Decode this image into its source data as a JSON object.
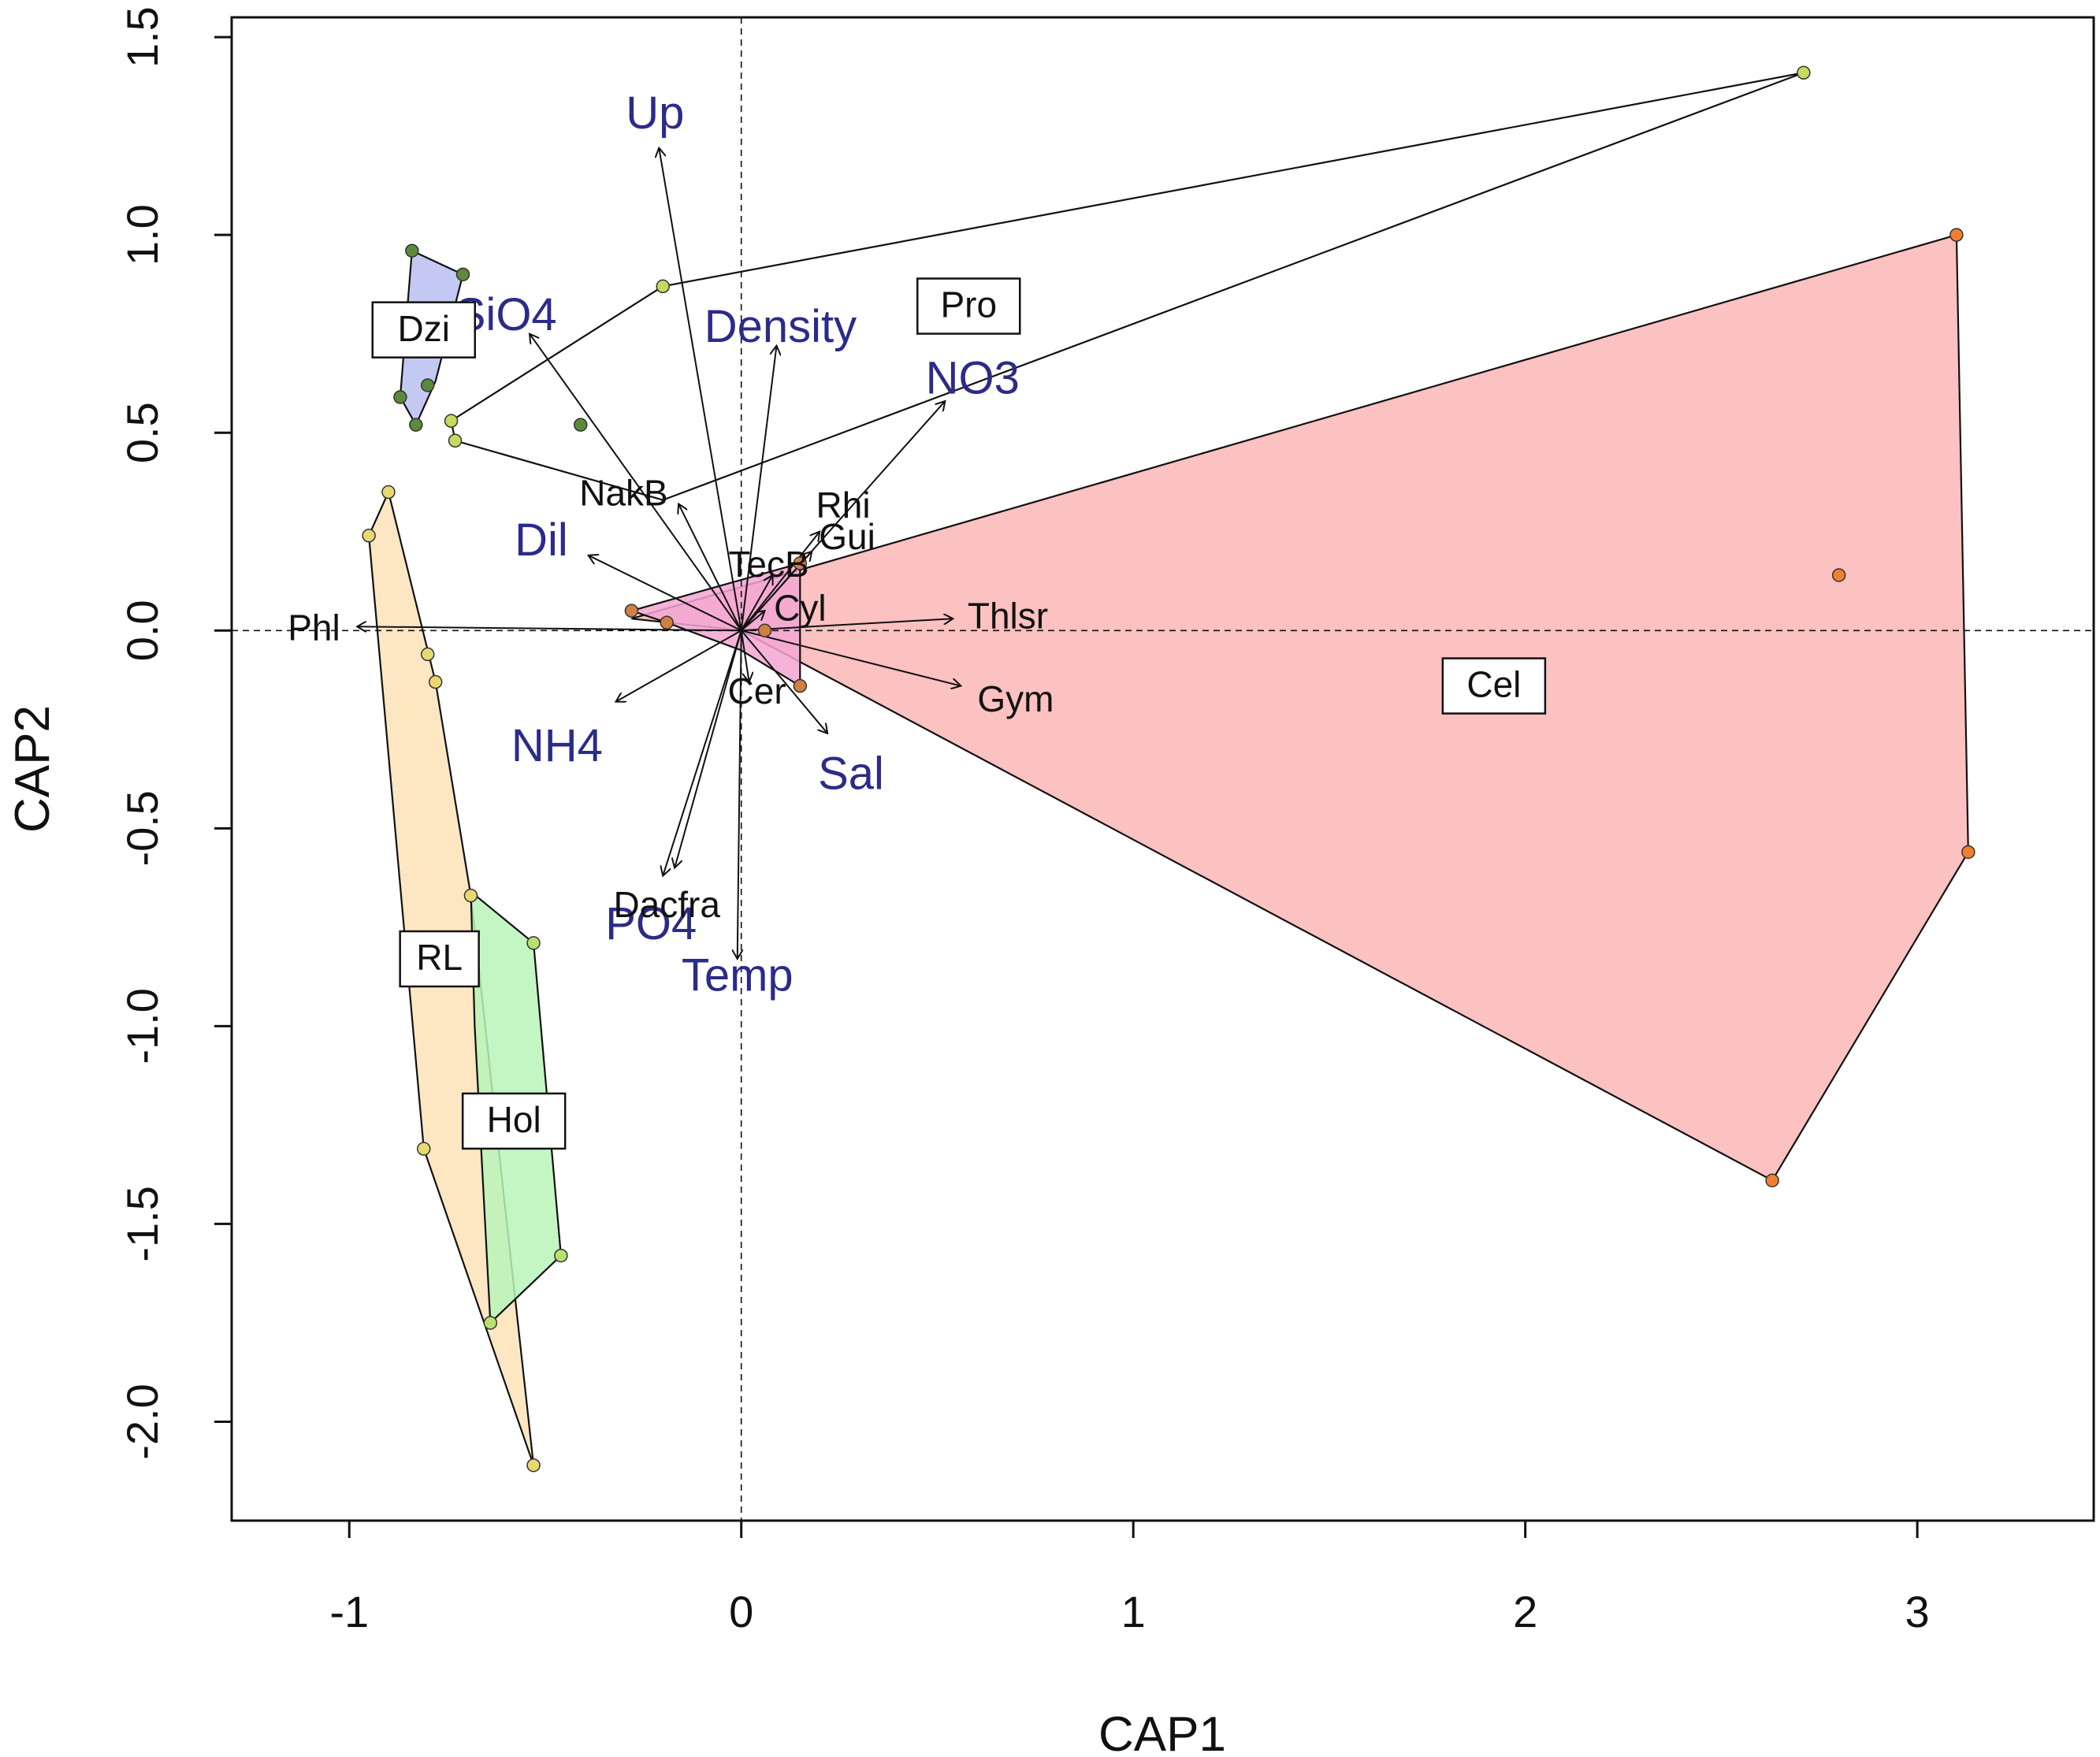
{
  "chart_data": {
    "type": "scatter",
    "title": "",
    "xlabel": "CAP1",
    "ylabel": "CAP2",
    "xlim": [
      -1.3,
      3.45
    ],
    "ylim": [
      -2.25,
      1.55
    ],
    "xticks": [
      {
        "value": -1,
        "label": "-1"
      },
      {
        "value": 0,
        "label": "0"
      },
      {
        "value": 1,
        "label": "1"
      },
      {
        "value": 2,
        "label": "2"
      },
      {
        "value": 3,
        "label": "3"
      }
    ],
    "yticks": [
      {
        "value": -2.0,
        "label": "-2.0"
      },
      {
        "value": -1.5,
        "label": "-1.5"
      },
      {
        "value": -1.0,
        "label": "-1.0"
      },
      {
        "value": -0.5,
        "label": "-0.5"
      },
      {
        "value": 0.0,
        "label": "0.0"
      },
      {
        "value": 0.5,
        "label": "0.5"
      },
      {
        "value": 1.0,
        "label": "1.0"
      },
      {
        "value": 1.5,
        "label": "1.5"
      }
    ],
    "reference_lines": {
      "x": 0,
      "y": 0,
      "style": "dashed"
    },
    "groups": [
      {
        "label": "Cel",
        "fill": "#fbb6b6",
        "label_at": [
          1.92,
          -0.14
        ],
        "hull": [
          [
            -0.28,
            0.03
          ],
          [
            3.1,
            1.0
          ],
          [
            3.13,
            -0.56
          ],
          [
            2.63,
            -1.39
          ],
          [
            0.0,
            0.0
          ]
        ],
        "points": [
          [
            3.1,
            1.0
          ],
          [
            3.13,
            -0.56
          ],
          [
            2.63,
            -1.39
          ],
          [
            2.8,
            0.14
          ]
        ]
      },
      {
        "label": "Pro",
        "fill": "none",
        "label_at": [
          0.58,
          0.82
        ],
        "hull": [
          [
            2.71,
            1.41
          ],
          [
            -0.2,
            0.87
          ],
          [
            -0.74,
            0.53
          ],
          [
            -0.73,
            0.48
          ],
          [
            -0.2,
            0.33
          ]
        ],
        "points": [
          [
            2.71,
            1.41
          ],
          [
            -0.2,
            0.87
          ],
          [
            -0.74,
            0.53
          ],
          [
            -0.73,
            0.48
          ]
        ]
      },
      {
        "label": "Dzi",
        "fill": "#b8bff0",
        "label_at": [
          -0.81,
          0.76
        ],
        "hull": [
          [
            -0.84,
            0.96
          ],
          [
            -0.71,
            0.9
          ],
          [
            -0.78,
            0.63
          ],
          [
            -0.83,
            0.52
          ],
          [
            -0.87,
            0.59
          ]
        ],
        "points": [
          [
            -0.84,
            0.96
          ],
          [
            -0.71,
            0.9
          ],
          [
            -0.8,
            0.62
          ],
          [
            -0.83,
            0.52
          ],
          [
            -0.87,
            0.59
          ],
          [
            -0.41,
            0.52
          ]
        ]
      },
      {
        "label": "RL",
        "fill": "#fde3b8",
        "label_at": [
          -0.77,
          -0.83
        ],
        "hull": [
          [
            -0.9,
            0.35
          ],
          [
            -0.95,
            0.24
          ],
          [
            -0.81,
            -1.31
          ],
          [
            -0.53,
            -2.11
          ],
          [
            -0.69,
            -0.67
          ],
          [
            -0.78,
            -0.13
          ]
        ],
        "points": [
          [
            -0.9,
            0.35
          ],
          [
            -0.95,
            0.24
          ],
          [
            -0.8,
            -0.06
          ],
          [
            -0.78,
            -0.13
          ],
          [
            -0.81,
            -1.31
          ],
          [
            -0.53,
            -2.11
          ],
          [
            -0.69,
            -0.67
          ]
        ]
      },
      {
        "label": "Hol",
        "fill": "#b9f5b9",
        "label_at": [
          -0.58,
          -1.24
        ],
        "hull": [
          [
            -0.69,
            -0.66
          ],
          [
            -0.53,
            -0.79
          ],
          [
            -0.46,
            -1.58
          ],
          [
            -0.64,
            -1.75
          ],
          [
            -0.68,
            -1.0
          ]
        ],
        "points": [
          [
            -0.53,
            -0.79
          ],
          [
            -0.46,
            -1.58
          ],
          [
            -0.64,
            -1.75
          ]
        ]
      },
      {
        "label": "",
        "fill": "#f3a6d4",
        "hull": [
          [
            -0.28,
            0.05
          ],
          [
            0.15,
            0.17
          ],
          [
            0.15,
            -0.14
          ],
          [
            0.0,
            -0.05
          ],
          [
            -0.19,
            0.02
          ]
        ],
        "points": [
          [
            -0.28,
            0.05
          ],
          [
            -0.19,
            0.02
          ],
          [
            0.15,
            -0.14
          ],
          [
            0.06,
            0.0
          ],
          [
            0.15,
            0.17
          ]
        ]
      }
    ],
    "env_vectors": [
      {
        "label": "Up",
        "tip": [
          -0.21,
          1.22
        ],
        "label_at": [
          -0.22,
          1.3
        ]
      },
      {
        "label": "Density",
        "tip": [
          0.09,
          0.72
        ],
        "label_at": [
          0.1,
          0.76
        ]
      },
      {
        "label": "NO3",
        "tip": [
          0.52,
          0.58
        ],
        "label_at": [
          0.59,
          0.63
        ]
      },
      {
        "label": "SiO4",
        "tip": [
          -0.54,
          0.75
        ],
        "label_at": [
          -0.6,
          0.79
        ]
      },
      {
        "label": "Dil",
        "tip": [
          -0.39,
          0.19
        ],
        "label_at": [
          -0.51,
          0.22
        ]
      },
      {
        "label": "NH4",
        "tip": [
          -0.32,
          -0.18
        ],
        "label_at": [
          -0.47,
          -0.3
        ]
      },
      {
        "label": "Sal",
        "tip": [
          0.22,
          -0.26
        ],
        "label_at": [
          0.28,
          -0.37
        ]
      },
      {
        "label": "PO4",
        "tip": [
          -0.2,
          -0.62
        ],
        "label_at": [
          -0.23,
          -0.75
        ]
      },
      {
        "label": "Temp",
        "tip": [
          -0.01,
          -0.83
        ],
        "label_at": [
          -0.01,
          -0.88
        ]
      }
    ],
    "species_vectors": [
      {
        "label": "Phl",
        "tip": [
          -0.98,
          0.01
        ],
        "label_at": [
          -1.09,
          0.0
        ]
      },
      {
        "label": "NakB",
        "tip": [
          -0.16,
          0.32
        ],
        "label_at": [
          -0.3,
          0.34
        ]
      },
      {
        "label": "Rhi",
        "tip": [
          0.2,
          0.25
        ],
        "label_at": [
          0.26,
          0.31
        ]
      },
      {
        "label": "Gui",
        "tip": [
          0.18,
          0.2
        ],
        "label_at": [
          0.27,
          0.23
        ]
      },
      {
        "label": "TecB",
        "tip": [
          0.08,
          0.14
        ],
        "label_at": [
          0.07,
          0.16
        ]
      },
      {
        "label": "Cyl",
        "tip": [
          0.06,
          0.05
        ],
        "label_at": [
          0.15,
          0.05
        ]
      },
      {
        "label": "Thlsr",
        "tip": [
          0.54,
          0.03
        ],
        "label_at": [
          0.68,
          0.03
        ]
      },
      {
        "label": "Gym",
        "tip": [
          0.56,
          -0.14
        ],
        "label_at": [
          0.7,
          -0.18
        ]
      },
      {
        "label": "Cer",
        "tip": [
          0.02,
          -0.13
        ],
        "label_at": [
          0.04,
          -0.16
        ]
      },
      {
        "label": "Dacfra",
        "tip": [
          -0.17,
          -0.6
        ],
        "label_at": [
          -0.19,
          -0.7
        ]
      }
    ]
  }
}
